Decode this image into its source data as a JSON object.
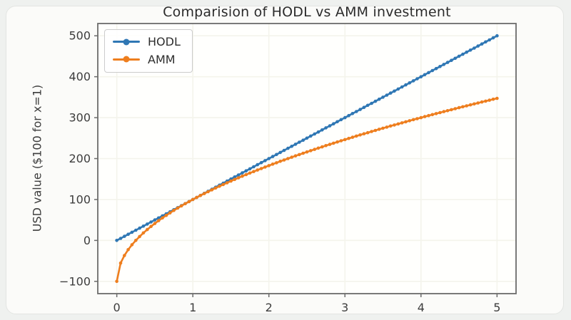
{
  "page": {
    "background": "#eff1ef",
    "card_background": "#fbfbf9"
  },
  "chart_data": {
    "type": "line",
    "title": "Comparision of HODL vs AMM investment",
    "xlabel": "",
    "ylabel": "USD value ($100 for x=1)",
    "xlim": [
      -0.25,
      5.25
    ],
    "ylim": [
      -130,
      530
    ],
    "xticks": [
      0,
      1,
      2,
      3,
      4,
      5
    ],
    "yticks": [
      -100,
      0,
      100,
      200,
      300,
      400,
      500
    ],
    "grid": true,
    "legend_position": "upper left",
    "marker_style": "dot",
    "colors": {
      "plot_bg": "#fffffd",
      "grid": "#f4f4ec",
      "spine": "#6b6b6b",
      "tick_text": "#3d3d3d"
    },
    "x": [
      0,
      0.05,
      0.1,
      0.15,
      0.2,
      0.25,
      0.3,
      0.35,
      0.4,
      0.45,
      0.5,
      0.55,
      0.6,
      0.65,
      0.7,
      0.75,
      0.8,
      0.85,
      0.9,
      0.95,
      1,
      1.05,
      1.1,
      1.15,
      1.2,
      1.25,
      1.3,
      1.35,
      1.4,
      1.45,
      1.5,
      1.55,
      1.6,
      1.65,
      1.7,
      1.75,
      1.8,
      1.85,
      1.9,
      1.95,
      2,
      2.05,
      2.1,
      2.15,
      2.2,
      2.25,
      2.3,
      2.35,
      2.4,
      2.45,
      2.5,
      2.55,
      2.6,
      2.65,
      2.7,
      2.75,
      2.8,
      2.85,
      2.9,
      2.95,
      3,
      3.05,
      3.1,
      3.15,
      3.2,
      3.25,
      3.3,
      3.35,
      3.4,
      3.45,
      3.5,
      3.55,
      3.6,
      3.65,
      3.7,
      3.75,
      3.8,
      3.85,
      3.9,
      3.95,
      4,
      4.05,
      4.1,
      4.15,
      4.2,
      4.25,
      4.3,
      4.35,
      4.4,
      4.45,
      4.5,
      4.55,
      4.6,
      4.65,
      4.7,
      4.75,
      4.8,
      4.85,
      4.9,
      4.95,
      5
    ],
    "series": [
      {
        "name": "HODL",
        "color": "#2f77b4",
        "values": [
          0,
          5,
          10,
          15,
          20,
          25,
          30,
          35,
          40,
          45,
          50,
          55,
          60,
          65,
          70,
          75,
          80,
          85,
          90,
          95,
          100,
          105,
          110,
          115,
          120,
          125,
          130,
          135,
          140,
          145,
          150,
          155,
          160,
          165,
          170,
          175,
          180,
          185,
          190,
          195,
          200,
          205,
          210,
          215,
          220,
          225,
          230,
          235,
          240,
          245,
          250,
          255,
          260,
          265,
          270,
          275,
          280,
          285,
          290,
          295,
          300,
          305,
          310,
          315,
          320,
          325,
          330,
          335,
          340,
          345,
          350,
          355,
          360,
          365,
          370,
          375,
          380,
          385,
          390,
          395,
          400,
          405,
          410,
          415,
          420,
          425,
          430,
          435,
          440,
          445,
          450,
          455,
          460,
          465,
          470,
          475,
          480,
          485,
          490,
          495,
          500
        ]
      },
      {
        "name": "AMM",
        "color": "#ee7e1e",
        "values": [
          -100,
          -55.3,
          -36.8,
          -22.5,
          -10.6,
          0,
          9.5,
          18.3,
          26.5,
          34.2,
          41.4,
          48.3,
          54.9,
          61.2,
          67.3,
          73.2,
          78.9,
          84.4,
          89.7,
          94.9,
          100,
          104.9,
          109.8,
          114.5,
          119.1,
          123.6,
          128,
          132.4,
          136.6,
          140.8,
          144.9,
          149,
          153,
          156.9,
          160.8,
          164.6,
          168.3,
          172,
          175.7,
          179.3,
          182.8,
          186.4,
          189.8,
          193.3,
          196.6,
          200,
          203.3,
          206.6,
          209.8,
          213,
          216.2,
          219.4,
          222.5,
          225.6,
          228.6,
          231.7,
          234.7,
          237.6,
          240.6,
          243.5,
          246.4,
          249.3,
          252.1,
          255,
          257.8,
          260.6,
          263.3,
          266.1,
          268.8,
          271.5,
          274.2,
          276.8,
          279.5,
          282.1,
          284.7,
          287.3,
          289.9,
          292.4,
          295,
          297.5,
          300,
          302.5,
          305,
          307.4,
          309.9,
          312.3,
          314.7,
          317.1,
          319.5,
          321.9,
          324.3,
          326.6,
          328.9,
          331.3,
          333.6,
          335.9,
          338.2,
          340.4,
          342.7,
          345,
          347.2
        ]
      }
    ]
  }
}
